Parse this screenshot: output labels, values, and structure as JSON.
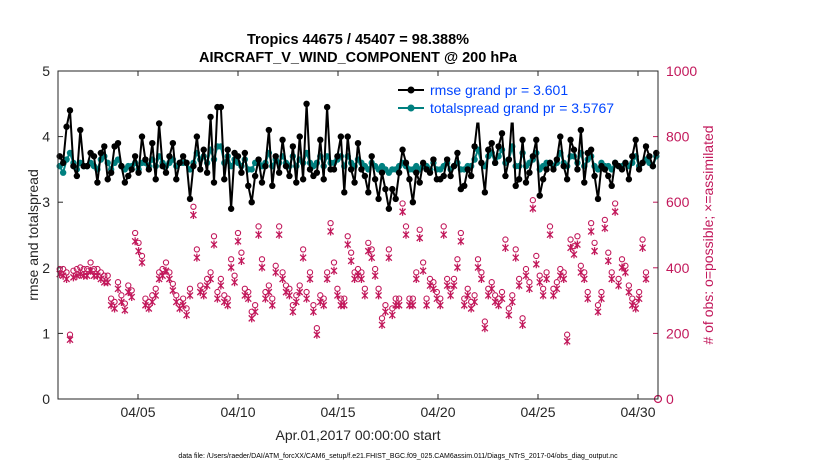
{
  "chart_data": {
    "type": "line",
    "title_line1": "Tropics 44675 / 45407 = 98.388%",
    "title_line2": "AIRCRAFT_V_WIND_COMPONENT @ 200 hPa",
    "xlabel": "Apr.01,2017 00:00:00 start",
    "ylabel_left": "rmse and totalspread",
    "ylabel_right": "# of obs: o=possible; ×=assimilated",
    "xlim": [
      1,
      31
    ],
    "ylim_left": [
      0,
      5
    ],
    "ylim_right": [
      0,
      1000
    ],
    "x_ticks": [
      {
        "value": 5,
        "label": "04/05"
      },
      {
        "value": 10,
        "label": "04/10"
      },
      {
        "value": 15,
        "label": "04/15"
      },
      {
        "value": 20,
        "label": "04/20"
      },
      {
        "value": 25,
        "label": "04/25"
      },
      {
        "value": 30,
        "label": "04/30"
      }
    ],
    "y_ticks_left": [
      "0",
      "1",
      "2",
      "3",
      "4",
      "5"
    ],
    "y_ticks_right": [
      "0",
      "200",
      "400",
      "600",
      "800",
      "1000"
    ],
    "colors": {
      "rmse": "#000000",
      "totalspread": "#008080",
      "obs": "#c2185b",
      "blue_text": "#0044ff"
    },
    "legend": [
      {
        "name": "rmse grand pr = 3.601"
      },
      {
        "name": "totalspread grand pr = 3.5767"
      }
    ],
    "footer": "data file: /Users/raeder/DAI/ATM_forcXX/CAM6_setup/f.e21.FHIST_BGC.f09_025.CAM6assim.011/Diags_NTrS_2017-04/obs_diag_output.nc",
    "series": [
      {
        "name": "rmse",
        "axis": "left",
        "values": [
          3.7,
          3.6,
          4.15,
          4.4,
          3.55,
          3.4,
          4.1,
          3.55,
          3.55,
          3.75,
          3.7,
          3.3,
          3.75,
          3.85,
          3.35,
          3.45,
          3.85,
          3.9,
          3.55,
          3.3,
          3.4,
          3.5,
          3.7,
          3.45,
          4.0,
          3.65,
          3.5,
          3.9,
          3.35,
          4.2,
          3.55,
          3.45,
          3.7,
          3.9,
          3.35,
          3.6,
          3.7,
          3.6,
          3.05,
          3.55,
          4.0,
          3.5,
          3.8,
          3.45,
          4.3,
          3.3,
          4.45,
          4.45,
          3.35,
          3.8,
          2.9,
          3.75,
          3.7,
          3.45,
          3.75,
          3.25,
          3.0,
          3.4,
          3.65,
          3.3,
          3.55,
          4.1,
          3.25,
          3.7,
          3.45,
          3.95,
          3.55,
          3.4,
          3.85,
          3.3,
          4.0,
          3.35,
          4.5,
          3.5,
          3.4,
          3.45,
          3.95,
          3.35,
          4.45,
          3.5,
          3.5,
          3.7,
          4.0,
          3.15,
          4.0,
          3.5,
          3.3,
          3.9,
          3.5,
          3.4,
          3.15,
          3.7,
          3.35,
          3.05,
          3.45,
          3.2,
          2.9,
          3.2,
          3.05,
          3.45,
          3.8,
          3.6,
          3.35,
          3.0,
          3.45,
          3.3,
          3.6,
          3.5,
          3.45,
          3.65,
          3.35,
          3.35,
          3.4,
          3.65,
          3.4,
          3.55,
          3.75,
          3.2,
          3.25,
          3.5,
          3.4,
          3.85,
          4.3,
          3.6,
          3.15,
          3.8,
          3.9,
          3.6,
          3.85,
          4.05,
          3.4,
          3.65,
          4.35,
          3.25,
          3.35,
          3.95,
          3.3,
          3.45,
          3.7,
          3.95,
          3.1,
          3.35,
          3.5,
          3.6,
          3.5,
          3.65,
          4.0,
          3.55,
          3.35,
          3.95,
          3.8,
          3.5,
          4.1,
          3.3,
          3.75,
          3.8,
          3.4,
          3.05,
          3.55,
          3.5,
          3.4,
          3.25,
          3.6,
          3.55,
          3.5,
          3.6,
          3.35,
          3.7,
          3.95,
          3.5,
          3.6,
          3.85,
          3.7,
          3.55,
          3.75
        ]
      },
      {
        "name": "totalspread",
        "axis": "left",
        "values": [
          3.55,
          3.45,
          3.65,
          3.75,
          3.6,
          3.5,
          3.6,
          3.55,
          3.55,
          3.6,
          3.55,
          3.5,
          3.65,
          3.7,
          3.6,
          3.5,
          3.6,
          3.65,
          3.55,
          3.5,
          3.55,
          3.55,
          3.6,
          3.5,
          3.6,
          3.6,
          3.55,
          3.65,
          3.55,
          3.7,
          3.6,
          3.55,
          3.6,
          3.65,
          3.55,
          3.6,
          3.6,
          3.6,
          3.5,
          3.6,
          3.75,
          3.65,
          3.7,
          3.6,
          3.8,
          3.65,
          3.85,
          3.85,
          3.6,
          3.7,
          3.55,
          3.65,
          3.6,
          3.55,
          3.65,
          3.5,
          3.5,
          3.6,
          3.6,
          3.55,
          3.6,
          3.75,
          3.55,
          3.65,
          3.6,
          3.7,
          3.6,
          3.55,
          3.7,
          3.55,
          3.65,
          3.6,
          3.75,
          3.6,
          3.55,
          3.6,
          3.7,
          3.55,
          3.7,
          3.6,
          3.6,
          3.65,
          3.7,
          3.55,
          3.7,
          3.6,
          3.55,
          3.65,
          3.6,
          3.55,
          3.5,
          3.6,
          3.55,
          3.5,
          3.55,
          3.5,
          3.45,
          3.5,
          3.5,
          3.55,
          3.6,
          3.55,
          3.5,
          3.5,
          3.55,
          3.5,
          3.55,
          3.55,
          3.5,
          3.6,
          3.5,
          3.5,
          3.55,
          3.6,
          3.5,
          3.55,
          3.6,
          3.5,
          3.5,
          3.55,
          3.55,
          3.65,
          3.8,
          3.6,
          3.55,
          3.7,
          3.75,
          3.6,
          3.7,
          3.8,
          3.6,
          3.65,
          3.85,
          3.55,
          3.55,
          3.75,
          3.55,
          3.6,
          3.65,
          3.75,
          3.5,
          3.55,
          3.6,
          3.6,
          3.55,
          3.6,
          3.75,
          3.6,
          3.55,
          3.7,
          3.7,
          3.6,
          3.75,
          3.55,
          3.65,
          3.7,
          3.55,
          3.5,
          3.6,
          3.55,
          3.55,
          3.5,
          3.6,
          3.55,
          3.55,
          3.6,
          3.55,
          3.6,
          3.7,
          3.55,
          3.6,
          3.65,
          3.6,
          3.55,
          3.7
        ]
      },
      {
        "name": "obs possible",
        "axis": "right",
        "values": [
          390,
          390,
          380,
          190,
          385,
          390,
          395,
          390,
          390,
          410,
          390,
          390,
          380,
          370,
          370,
          300,
          290,
          350,
          310,
          285,
          340,
          325,
          500,
          470,
          430,
          300,
          290,
          310,
          330,
          380,
          390,
          410,
          380,
          345,
          310,
          290,
          300,
          270,
          330,
          580,
          450,
          340,
          330,
          360,
          380,
          490,
          320,
          360,
          310,
          300,
          420,
          370,
          500,
          440,
          330,
          320,
          260,
          280,
          520,
          420,
          320,
          340,
          300,
          400,
          520,
          380,
          340,
          330,
          280,
          310,
          340,
          450,
          320,
          380,
          280,
          210,
          310,
          300,
          380,
          530,
          410,
          330,
          300,
          300,
          490,
          440,
          380,
          390,
          380,
          330,
          470,
          450,
          390,
          330,
          240,
          280,
          450,
          270,
          300,
          300,
          590,
          520,
          300,
          300,
          380,
          510,
          410,
          300,
          360,
          350,
          320,
          300,
          520,
          360,
          330,
          360,
          420,
          500,
          300,
          330,
          290,
          310,
          420,
          380,
          230,
          330,
          350,
          310,
          300,
          320,
          480,
          270,
          310,
          450,
          360,
          240,
          390,
          350,
          600,
          430,
          370,
          330,
          380,
          520,
          330,
          350,
          390,
          380,
          190,
          480,
          460,
          490,
          400,
          380,
          320,
          530,
          470,
          280,
          320,
          540,
          440,
          380,
          590,
          360,
          420,
          400,
          340,
          300,
          290,
          320,
          480,
          380
        ]
      },
      {
        "name": "obs assimilated",
        "axis": "right",
        "values": [
          390,
          385,
          375,
          190,
          380,
          385,
          390,
          385,
          385,
          400,
          385,
          385,
          375,
          365,
          365,
          295,
          285,
          345,
          305,
          280,
          335,
          320,
          490,
          460,
          425,
          295,
          285,
          305,
          325,
          375,
          385,
          400,
          375,
          340,
          305,
          285,
          295,
          265,
          325,
          570,
          440,
          335,
          325,
          355,
          375,
          480,
          315,
          355,
          305,
          295,
          410,
          365,
          490,
          430,
          325,
          315,
          255,
          275,
          510,
          410,
          315,
          335,
          295,
          395,
          510,
          375,
          335,
          325,
          275,
          305,
          335,
          440,
          315,
          375,
          275,
          205,
          305,
          295,
          375,
          520,
          400,
          325,
          295,
          295,
          480,
          430,
          375,
          385,
          375,
          325,
          460,
          440,
          385,
          325,
          235,
          275,
          440,
          265,
          295,
          295,
          580,
          510,
          295,
          295,
          375,
          500,
          400,
          295,
          355,
          345,
          315,
          295,
          510,
          355,
          325,
          355,
          410,
          490,
          295,
          325,
          285,
          305,
          410,
          375,
          225,
          325,
          345,
          305,
          295,
          315,
          470,
          265,
          305,
          440,
          355,
          235,
          385,
          345,
          590,
          420,
          365,
          325,
          375,
          510,
          325,
          345,
          385,
          375,
          185,
          470,
          450,
          480,
          395,
          375,
          315,
          520,
          460,
          275,
          315,
          530,
          430,
          375,
          580,
          355,
          410,
          395,
          335,
          295,
          285,
          315,
          470,
          375
        ]
      }
    ]
  }
}
